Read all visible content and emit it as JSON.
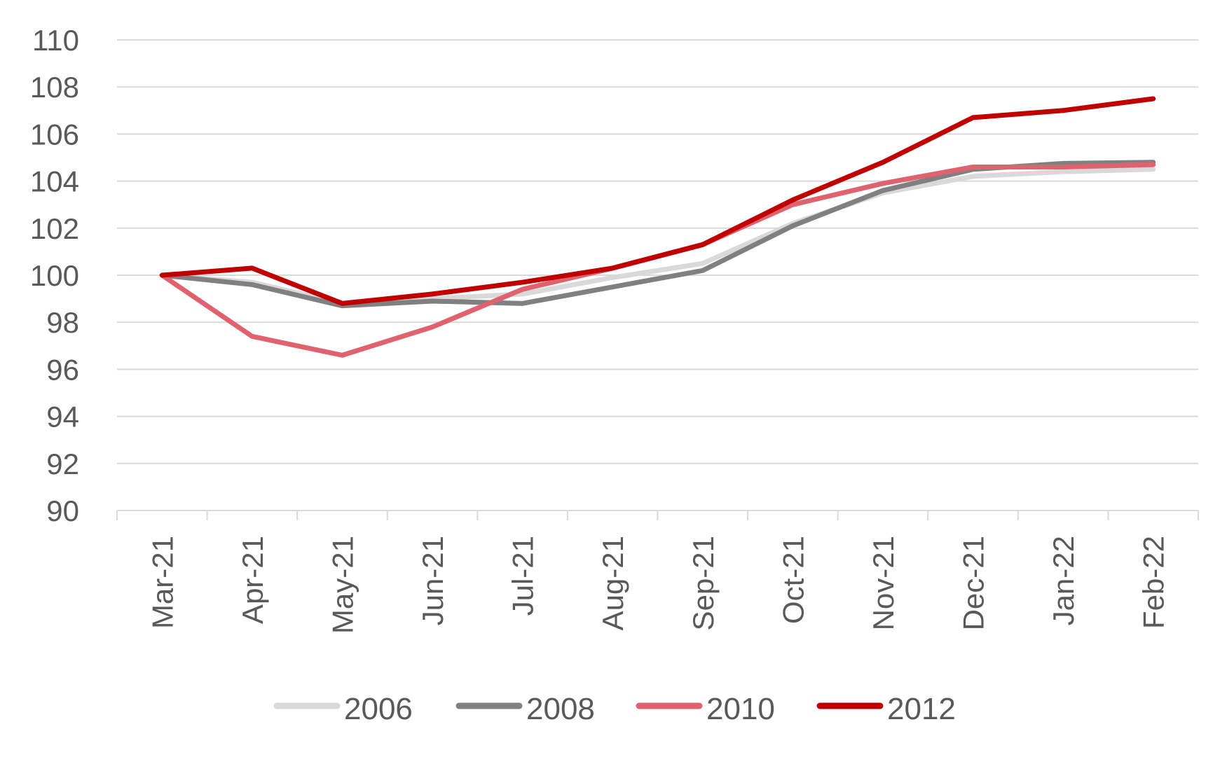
{
  "chart_data": {
    "type": "line",
    "title": "",
    "xlabel": "",
    "ylabel": "",
    "categories": [
      "Mar-21",
      "Apr-21",
      "May-21",
      "Jun-21",
      "Jul-21",
      "Aug-21",
      "Sep-21",
      "Oct-21",
      "Nov-21",
      "Dec-21",
      "Jan-22",
      "Feb-22"
    ],
    "ylim": [
      90,
      110
    ],
    "yticks": [
      90,
      92,
      94,
      96,
      98,
      100,
      102,
      104,
      106,
      108,
      110
    ],
    "ytick_labels": [
      "90",
      "92",
      "94",
      "96",
      "98",
      "100",
      "102",
      "104",
      "106",
      "108",
      "110"
    ],
    "grid": true,
    "legend_position": "bottom",
    "series": [
      {
        "name": "2006",
        "color": "#d9d9d9",
        "values": [
          100,
          99.7,
          98.8,
          99.0,
          99.2,
          99.9,
          100.5,
          102.2,
          103.5,
          104.2,
          104.4,
          104.5
        ]
      },
      {
        "name": "2008",
        "color": "#808080",
        "values": [
          100,
          99.6,
          98.7,
          98.9,
          98.8,
          99.5,
          100.2,
          102.1,
          103.6,
          104.5,
          104.75,
          104.8
        ]
      },
      {
        "name": "2010",
        "color": "#e0626e",
        "values": [
          100,
          97.4,
          96.6,
          97.8,
          99.4,
          100.3,
          101.3,
          103.0,
          103.9,
          104.6,
          104.6,
          104.7
        ]
      },
      {
        "name": "2012",
        "color": "#c00000",
        "values": [
          100,
          100.3,
          98.8,
          99.2,
          99.7,
          100.3,
          101.3,
          103.2,
          104.8,
          106.7,
          107.0,
          107.5
        ]
      }
    ]
  }
}
